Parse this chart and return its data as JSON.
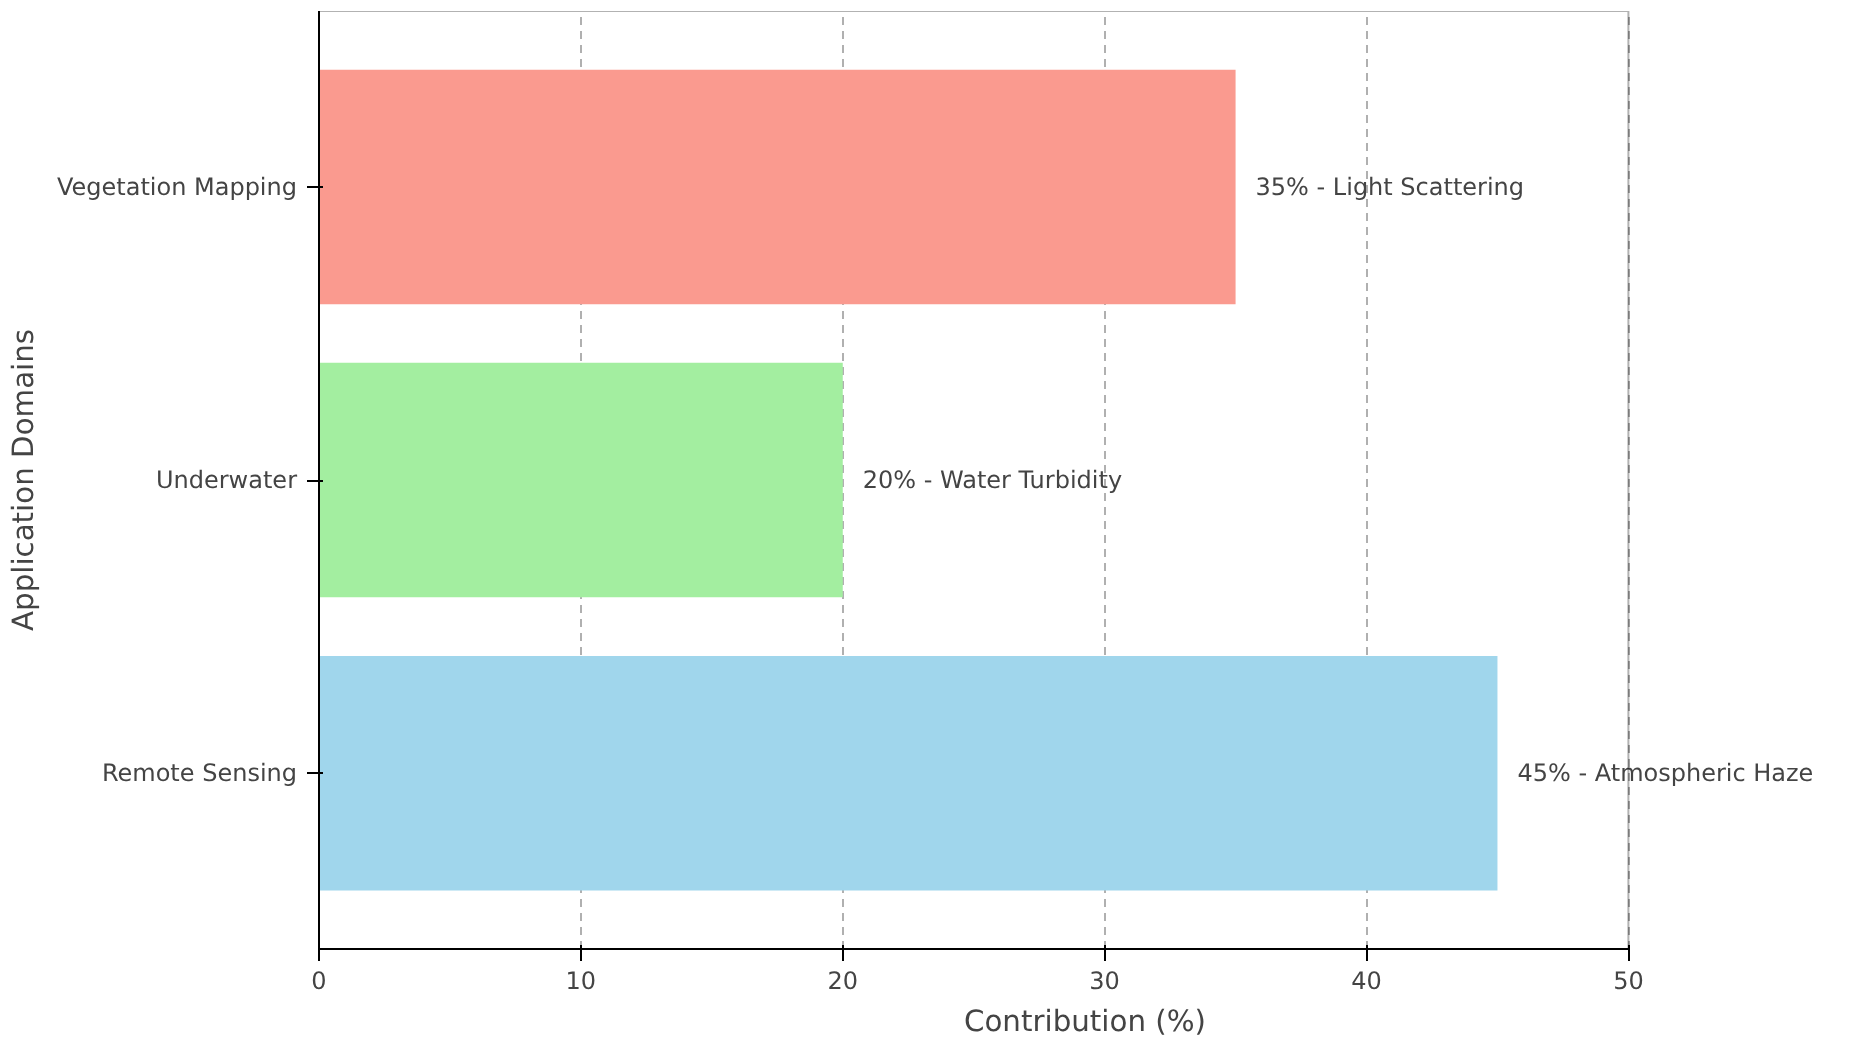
{
  "chart_data": {
    "type": "bar",
    "orientation": "horizontal",
    "xlabel": "Contribution (%)",
    "ylabel": "Application Domains",
    "categories": [
      "Vegetation Mapping",
      "Underwater",
      "Remote Sensing"
    ],
    "values": [
      35,
      20,
      45
    ],
    "colors": [
      "#fa9a8f",
      "#a3eea0",
      "#a0d6ec"
    ],
    "value_labels": [
      "35% - Light Scattering",
      "20% - Water Turbidity",
      "45% - Atmospheric Haze"
    ],
    "xlim": [
      0,
      50
    ],
    "xticks": [
      0,
      10,
      20,
      30,
      40,
      50
    ],
    "grid": "x",
    "line_style": "dashed"
  }
}
